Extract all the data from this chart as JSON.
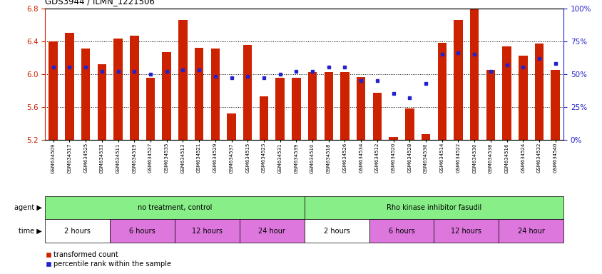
{
  "title": "GDS3944 / ILMN_1221506",
  "samples": [
    "GSM634509",
    "GSM634517",
    "GSM634525",
    "GSM634533",
    "GSM634511",
    "GSM634519",
    "GSM634527",
    "GSM634535",
    "GSM634513",
    "GSM634521",
    "GSM634529",
    "GSM634537",
    "GSM634515",
    "GSM634523",
    "GSM634531",
    "GSM634539",
    "GSM634510",
    "GSM634518",
    "GSM634526",
    "GSM634534",
    "GSM634512",
    "GSM634520",
    "GSM634528",
    "GSM634536",
    "GSM634514",
    "GSM634522",
    "GSM634530",
    "GSM634538",
    "GSM634516",
    "GSM634524",
    "GSM634532",
    "GSM634540"
  ],
  "bar_values": [
    6.4,
    6.5,
    6.31,
    6.12,
    6.43,
    6.47,
    5.95,
    6.27,
    6.66,
    6.32,
    6.31,
    5.52,
    6.35,
    5.73,
    5.95,
    5.95,
    6.02,
    6.02,
    6.02,
    5.96,
    5.77,
    5.23,
    5.58,
    5.27,
    6.38,
    6.66,
    6.79,
    6.05,
    6.34,
    6.22,
    6.37,
    6.05
  ],
  "percentile_values": [
    55,
    55,
    55,
    52,
    52,
    52,
    50,
    52,
    53,
    53,
    48,
    47,
    48,
    47,
    50,
    52,
    52,
    55,
    55,
    45,
    45,
    35,
    32,
    43,
    65,
    66,
    65,
    52,
    57,
    55,
    62,
    58
  ],
  "ylim": [
    5.2,
    6.8
  ],
  "yticks": [
    5.2,
    5.6,
    6.0,
    6.4,
    6.8
  ],
  "right_yticks": [
    0,
    25,
    50,
    75,
    100
  ],
  "right_ylabels": [
    "0%",
    "25%",
    "50%",
    "75%",
    "100%"
  ],
  "bar_color": "#cc2200",
  "dot_color": "#2222cc",
  "agents": [
    {
      "label": "no treatment, control",
      "start": 0,
      "end": 16,
      "color": "#88ee88"
    },
    {
      "label": "Rho kinase inhibitor fasudil",
      "start": 16,
      "end": 32,
      "color": "#88ee88"
    }
  ],
  "time_groups": [
    {
      "label": "2 hours",
      "start": 0,
      "end": 4,
      "color": "#ffffff"
    },
    {
      "label": "6 hours",
      "start": 4,
      "end": 8,
      "color": "#dd77dd"
    },
    {
      "label": "12 hours",
      "start": 8,
      "end": 12,
      "color": "#dd77dd"
    },
    {
      "label": "24 hour",
      "start": 12,
      "end": 16,
      "color": "#dd77dd"
    },
    {
      "label": "2 hours",
      "start": 16,
      "end": 20,
      "color": "#ffffff"
    },
    {
      "label": "6 hours",
      "start": 20,
      "end": 24,
      "color": "#dd77dd"
    },
    {
      "label": "12 hours",
      "start": 24,
      "end": 28,
      "color": "#dd77dd"
    },
    {
      "label": "24 hour",
      "start": 28,
      "end": 32,
      "color": "#dd77dd"
    }
  ],
  "legend_items": [
    {
      "label": "transformed count",
      "color": "#cc2200"
    },
    {
      "label": "percentile rank within the sample",
      "color": "#2222cc"
    }
  ],
  "background_color": "#ffffff"
}
